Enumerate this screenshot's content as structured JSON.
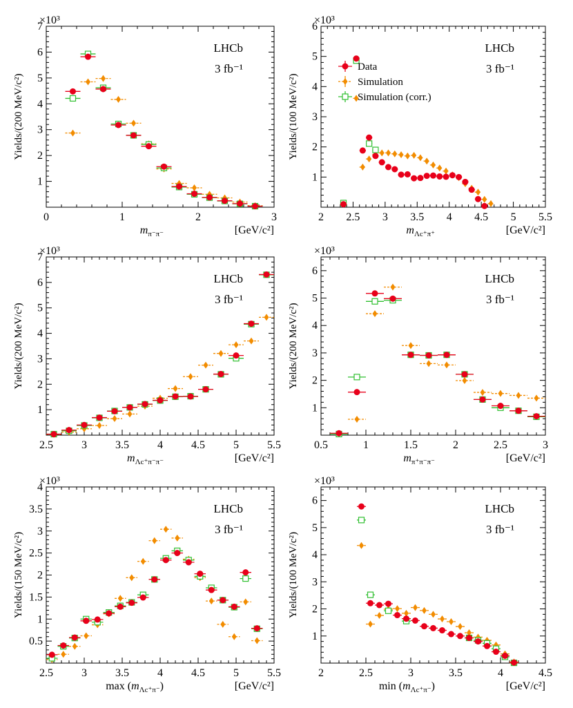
{
  "style": {
    "data_color": "#e8001a",
    "sim_color": "#f28c00",
    "corr_color": "#2fbf2f",
    "axis_color": "#000000"
  },
  "legend": {
    "data": "Data",
    "simulation": "Simulation",
    "simulation_corr": "Simulation (corr.)"
  },
  "chart_data": [
    {
      "id": "p1",
      "type": "scatter",
      "title": "",
      "xlabel_var": "m",
      "xlabel_sub": "π⁻π⁻",
      "xunit": "[GeV/c²]",
      "ylabel": "Yields/(200 MeV/c²)",
      "exponent": "×10³",
      "label_lhcb": "LHCb",
      "label_lumi": "3 fb⁻¹",
      "show_legend": false,
      "xlim": [
        0,
        3
      ],
      "ylim": [
        0,
        7
      ],
      "xticks": [
        0,
        1,
        2,
        3
      ],
      "xtick_labels": [
        "0",
        "1",
        "2",
        "3"
      ],
      "yticks": [
        1,
        2,
        3,
        4,
        5,
        6,
        7
      ],
      "ytick_labels": [
        "1",
        "2",
        "3",
        "4",
        "5",
        "6",
        "7"
      ],
      "series": [
        {
          "name": "Data",
          "half_width": 0.1,
          "x": [
            0.35,
            0.55,
            0.75,
            0.95,
            1.15,
            1.35,
            1.55,
            1.75,
            1.95,
            2.15,
            2.35,
            2.55,
            2.75
          ],
          "y": [
            4.48,
            5.82,
            4.57,
            3.18,
            2.78,
            2.36,
            1.57,
            0.8,
            0.52,
            0.38,
            0.25,
            0.14,
            0.04
          ]
        },
        {
          "name": "Simulation",
          "half_width": 0.1,
          "x": [
            0.35,
            0.55,
            0.75,
            0.95,
            1.15,
            1.35,
            1.55,
            1.75,
            1.95,
            2.15,
            2.35,
            2.55,
            2.75
          ],
          "y": [
            2.87,
            4.85,
            4.98,
            4.17,
            3.25,
            2.45,
            1.48,
            0.92,
            0.75,
            0.5,
            0.36,
            0.2,
            0.06
          ]
        },
        {
          "name": "Simulation (corr.)",
          "half_width": 0.1,
          "x": [
            0.35,
            0.55,
            0.75,
            0.95,
            1.15,
            1.35,
            1.55,
            1.75,
            1.95,
            2.15,
            2.35,
            2.55,
            2.75
          ],
          "y": [
            4.21,
            5.93,
            4.62,
            3.22,
            2.78,
            2.43,
            1.52,
            0.78,
            0.5,
            0.37,
            0.24,
            0.13,
            0.04
          ]
        }
      ]
    },
    {
      "id": "p2",
      "type": "scatter",
      "title": "",
      "xlabel_var": "m",
      "xlabel_sub": "Λc⁺π⁺",
      "xunit": "[GeV/c²]",
      "ylabel": "Yields/(100 MeV/c²)",
      "exponent": "×10³",
      "label_lhcb": "LHCb",
      "label_lumi": "3 fb⁻¹",
      "show_legend": true,
      "xlim": [
        2,
        5.5
      ],
      "ylim": [
        0,
        6
      ],
      "xticks": [
        2,
        2.5,
        3,
        3.5,
        4,
        4.5,
        5,
        5.5
      ],
      "xtick_labels": [
        "2",
        "2.5",
        "3",
        "3.5",
        "4",
        "4.5",
        "5",
        "5.5"
      ],
      "yticks": [
        1,
        2,
        3,
        4,
        5,
        6
      ],
      "ytick_labels": [
        "1",
        "2",
        "3",
        "4",
        "5",
        "6"
      ],
      "series": [
        {
          "name": "Data",
          "half_width": 0.05,
          "x": [
            2.35,
            2.55,
            2.65,
            2.75,
            2.85,
            2.95,
            3.05,
            3.15,
            3.25,
            3.35,
            3.45,
            3.55,
            3.65,
            3.75,
            3.85,
            3.95,
            4.05,
            4.15,
            4.25,
            4.35,
            4.45,
            4.55,
            4.65,
            4.75,
            4.85,
            4.95,
            5.05,
            5.15,
            5.25
          ],
          "y": [
            0.1,
            4.93,
            1.88,
            2.31,
            1.7,
            1.49,
            1.33,
            1.26,
            1.08,
            1.09,
            0.96,
            0.97,
            1.04,
            1.05,
            1.02,
            1.01,
            1.06,
            1.0,
            0.84,
            0.58,
            0.27,
            0.04,
            null,
            null,
            null,
            null,
            null,
            null,
            null
          ]
        },
        {
          "name": "Simulation",
          "half_width": 0.05,
          "x": [
            2.55,
            2.65,
            2.75,
            2.85,
            2.95,
            3.05,
            3.15,
            3.25,
            3.35,
            3.45,
            3.55,
            3.65,
            3.75,
            3.85,
            3.95,
            4.05,
            4.15,
            4.25,
            4.35,
            4.45,
            4.55,
            4.65,
            4.75,
            4.85,
            4.95,
            5.05,
            5.15,
            5.25
          ],
          "y": [
            3.61,
            1.33,
            1.6,
            1.75,
            1.8,
            1.8,
            1.77,
            1.74,
            1.7,
            1.72,
            1.64,
            1.53,
            1.4,
            1.3,
            1.2,
            1.07,
            0.98,
            0.78,
            0.63,
            0.5,
            0.26,
            0.12,
            null,
            null,
            null,
            null,
            null,
            null
          ]
        },
        {
          "name": "Simulation (corr.)",
          "half_width": 0.05,
          "x": [
            2.35,
            2.55,
            2.75,
            2.85
          ],
          "y": [
            0.14,
            4.86,
            2.11,
            1.9
          ]
        }
      ]
    },
    {
      "id": "p3",
      "type": "scatter",
      "title": "",
      "xlabel_var": "m",
      "xlabel_sub": "Λc⁺π⁻π⁻",
      "xunit": "[GeV/c²]",
      "ylabel": "Yields/(200 MeV/c²)",
      "exponent": "×10³",
      "label_lhcb": "LHCb",
      "label_lumi": "3 fb⁻¹",
      "show_legend": false,
      "xlim": [
        2.5,
        5.5
      ],
      "ylim": [
        0,
        7
      ],
      "xticks": [
        2.5,
        3,
        3.5,
        4,
        4.5,
        5,
        5.5
      ],
      "xtick_labels": [
        "2.5",
        "3",
        "3.5",
        "4",
        "4.5",
        "5",
        "5.5"
      ],
      "yticks": [
        1,
        2,
        3,
        4,
        5,
        6,
        7
      ],
      "ytick_labels": [
        "1",
        "2",
        "3",
        "4",
        "5",
        "6",
        "7"
      ],
      "series": [
        {
          "name": "Data",
          "half_width": 0.1,
          "x": [
            2.6,
            2.8,
            3.0,
            3.2,
            3.4,
            3.6,
            3.8,
            4.0,
            4.2,
            4.4,
            4.6,
            4.8,
            5.0,
            5.2,
            5.4
          ],
          "y": [
            0.04,
            0.2,
            0.4,
            0.69,
            0.94,
            1.09,
            1.22,
            1.37,
            1.52,
            1.52,
            1.8,
            2.4,
            3.13,
            4.38,
            6.31
          ]
        },
        {
          "name": "Simulation",
          "half_width": 0.1,
          "x": [
            2.6,
            2.8,
            3.0,
            3.2,
            3.4,
            3.6,
            3.8,
            4.0,
            4.2,
            4.4,
            4.6,
            4.8,
            5.0,
            5.2,
            5.4
          ],
          "y": [
            0.03,
            0.12,
            0.25,
            0.38,
            0.65,
            0.83,
            1.14,
            1.45,
            1.83,
            2.3,
            2.75,
            3.21,
            3.55,
            3.7,
            4.63
          ]
        },
        {
          "name": "Simulation (corr.)",
          "half_width": 0.1,
          "x": [
            2.6,
            2.8,
            3.0,
            3.2,
            3.4,
            3.6,
            3.8,
            4.0,
            4.2,
            4.4,
            4.6,
            4.8,
            5.0,
            5.2,
            5.4
          ],
          "y": [
            0.04,
            0.17,
            0.38,
            0.68,
            0.95,
            1.09,
            1.21,
            1.36,
            1.51,
            1.53,
            1.8,
            2.39,
            3.02,
            4.36,
            6.3
          ]
        }
      ]
    },
    {
      "id": "p4",
      "type": "scatter",
      "title": "",
      "xlabel_var": "m",
      "xlabel_sub": "π⁺π⁻π⁻",
      "xunit": "[GeV/c²]",
      "ylabel": "Yields/(200 MeV/c²)",
      "exponent": "×10³",
      "label_lhcb": "LHCb",
      "label_lumi": "3 fb⁻¹",
      "show_legend": false,
      "xlim": [
        0.5,
        3
      ],
      "ylim": [
        0,
        6.5
      ],
      "xticks": [
        0.5,
        1,
        1.5,
        2,
        2.5,
        3
      ],
      "xtick_labels": [
        "0.5",
        "1",
        "1.5",
        "2",
        "2.5",
        "3"
      ],
      "yticks": [
        1,
        2,
        3,
        4,
        5,
        6
      ],
      "ytick_labels": [
        "1",
        "2",
        "3",
        "4",
        "5",
        "6"
      ],
      "series": [
        {
          "name": "Data",
          "half_width": 0.1,
          "x": [
            0.7,
            0.9,
            1.1,
            1.3,
            1.5,
            1.7,
            1.9,
            2.1,
            2.3,
            2.5,
            2.7,
            2.9
          ],
          "y": [
            0.07,
            1.57,
            5.17,
            4.98,
            2.93,
            2.91,
            2.93,
            2.22,
            1.3,
            1.07,
            0.89,
            0.69
          ]
        },
        {
          "name": "Simulation",
          "half_width": 0.1,
          "x": [
            0.9,
            1.1,
            1.3,
            1.5,
            1.7,
            1.9,
            2.1,
            2.3,
            2.5,
            2.7,
            2.9
          ],
          "y": [
            0.58,
            4.43,
            5.4,
            3.27,
            2.61,
            2.56,
            1.99,
            1.56,
            1.52,
            1.45,
            1.35
          ]
        },
        {
          "name": "Simulation (corr.)",
          "half_width": 0.1,
          "x": [
            0.7,
            0.9,
            1.1,
            1.3,
            1.5,
            1.7,
            1.9,
            2.1,
            2.3,
            2.5,
            2.7,
            2.9
          ],
          "y": [
            0.04,
            2.12,
            4.88,
            4.92,
            2.93,
            2.91,
            2.93,
            2.22,
            1.3,
            1.0,
            0.89,
            0.67
          ]
        }
      ]
    },
    {
      "id": "p5",
      "type": "scatter",
      "title": "",
      "xlabel_prefix": "max",
      "xlabel_var": "m",
      "xlabel_sub": "Λc⁺π⁻",
      "xunit": "[GeV/c²]",
      "ylabel": "Yields/(150 MeV/c²)",
      "exponent": "×10³",
      "label_lhcb": "LHCb",
      "label_lumi": "3 fb⁻¹",
      "show_legend": false,
      "xlim": [
        2.5,
        5.5
      ],
      "ylim": [
        0,
        4
      ],
      "xticks": [
        2.5,
        3,
        3.5,
        4,
        4.5,
        5,
        5.5
      ],
      "xtick_labels": [
        "2.5",
        "3",
        "3.5",
        "4",
        "4.5",
        "5",
        "5.5"
      ],
      "yticks": [
        0.5,
        1,
        1.5,
        2,
        2.5,
        3,
        3.5,
        4
      ],
      "ytick_labels": [
        "0.5",
        "1",
        "1.5",
        "2",
        "2.5",
        "3",
        "3.5",
        "4"
      ],
      "series": [
        {
          "name": "Data",
          "half_width": 0.075,
          "x": [
            2.575,
            2.725,
            2.875,
            3.025,
            3.175,
            3.325,
            3.475,
            3.625,
            3.775,
            3.925,
            4.075,
            4.225,
            4.375,
            4.525,
            4.675,
            4.825,
            4.975,
            5.125,
            5.275
          ],
          "y": [
            0.19,
            0.4,
            0.58,
            0.96,
            0.99,
            1.13,
            1.28,
            1.37,
            1.49,
            1.9,
            2.34,
            2.5,
            2.29,
            2.03,
            1.66,
            1.43,
            1.28,
            2.06,
            0.79
          ]
        },
        {
          "name": "Simulation",
          "half_width": 0.075,
          "x": [
            2.575,
            2.725,
            2.875,
            3.025,
            3.175,
            3.325,
            3.475,
            3.625,
            3.775,
            3.925,
            4.075,
            4.225,
            4.375,
            4.525,
            4.675,
            4.825,
            4.975,
            5.125,
            5.275
          ],
          "y": [
            0.08,
            0.2,
            0.38,
            0.62,
            0.87,
            1.12,
            1.47,
            1.94,
            2.31,
            2.78,
            3.04,
            2.84,
            2.36,
            1.94,
            1.41,
            0.88,
            0.6,
            1.39,
            0.51
          ]
        },
        {
          "name": "Simulation (corr.)",
          "half_width": 0.075,
          "x": [
            2.575,
            2.725,
            2.875,
            3.025,
            3.175,
            3.325,
            3.475,
            3.625,
            3.775,
            3.925,
            4.075,
            4.225,
            4.375,
            4.525,
            4.675,
            4.825,
            4.975,
            5.125,
            5.275
          ],
          "y": [
            0.11,
            0.38,
            0.57,
            1.0,
            0.93,
            1.15,
            1.3,
            1.38,
            1.55,
            1.9,
            2.38,
            2.55,
            2.34,
            1.97,
            1.71,
            1.43,
            1.27,
            1.92,
            0.78
          ]
        }
      ]
    },
    {
      "id": "p6",
      "type": "scatter",
      "title": "",
      "xlabel_prefix": "min",
      "xlabel_var": "m",
      "xlabel_sub": "Λc⁺π⁻",
      "xunit": "[GeV/c²]",
      "ylabel": "Yields/(100 MeV/c²)",
      "exponent": "×10³",
      "label_lhcb": "LHCb",
      "label_lumi": "3 fb⁻¹",
      "show_legend": false,
      "xlim": [
        2,
        4.5
      ],
      "ylim": [
        0,
        6.5
      ],
      "xticks": [
        2,
        2.5,
        3,
        3.5,
        4,
        4.5
      ],
      "xtick_labels": [
        "2",
        "2.5",
        "3",
        "3.5",
        "4",
        "4.5"
      ],
      "yticks": [
        1,
        2,
        3,
        4,
        5,
        6
      ],
      "ytick_labels": [
        "1",
        "2",
        "3",
        "4",
        "5",
        "6"
      ],
      "series": [
        {
          "name": "Data",
          "half_width": 0.05,
          "x": [
            2.45,
            2.55,
            2.65,
            2.75,
            2.85,
            2.95,
            3.05,
            3.15,
            3.25,
            3.35,
            3.45,
            3.55,
            3.65,
            3.75,
            3.85,
            3.95,
            4.05,
            4.15
          ],
          "y": [
            5.78,
            2.21,
            2.14,
            2.19,
            1.77,
            1.64,
            1.57,
            1.36,
            1.29,
            1.21,
            1.07,
            1.0,
            0.93,
            0.8,
            0.63,
            0.42,
            0.27,
            0.02
          ]
        },
        {
          "name": "Simulation",
          "half_width": 0.05,
          "x": [
            2.45,
            2.55,
            2.65,
            2.75,
            2.85,
            2.95,
            3.05,
            3.15,
            3.25,
            3.35,
            3.45,
            3.55,
            3.65,
            3.75,
            3.85,
            3.95,
            4.05,
            4.15
          ],
          "y": [
            4.34,
            1.44,
            1.76,
            1.99,
            2.01,
            1.84,
            2.05,
            1.94,
            1.8,
            1.63,
            1.53,
            1.35,
            1.12,
            0.96,
            0.84,
            0.67,
            0.34,
            0.04
          ]
        },
        {
          "name": "Simulation (corr.)",
          "half_width": 0.05,
          "x": [
            2.45,
            2.55,
            2.75,
            2.95,
            3.65,
            3.75,
            3.85,
            3.95,
            4.05,
            4.15
          ],
          "y": [
            5.28,
            2.52,
            1.93,
            1.55,
            0.93,
            0.84,
            0.73,
            0.53,
            0.23,
            0.01
          ]
        }
      ]
    }
  ]
}
